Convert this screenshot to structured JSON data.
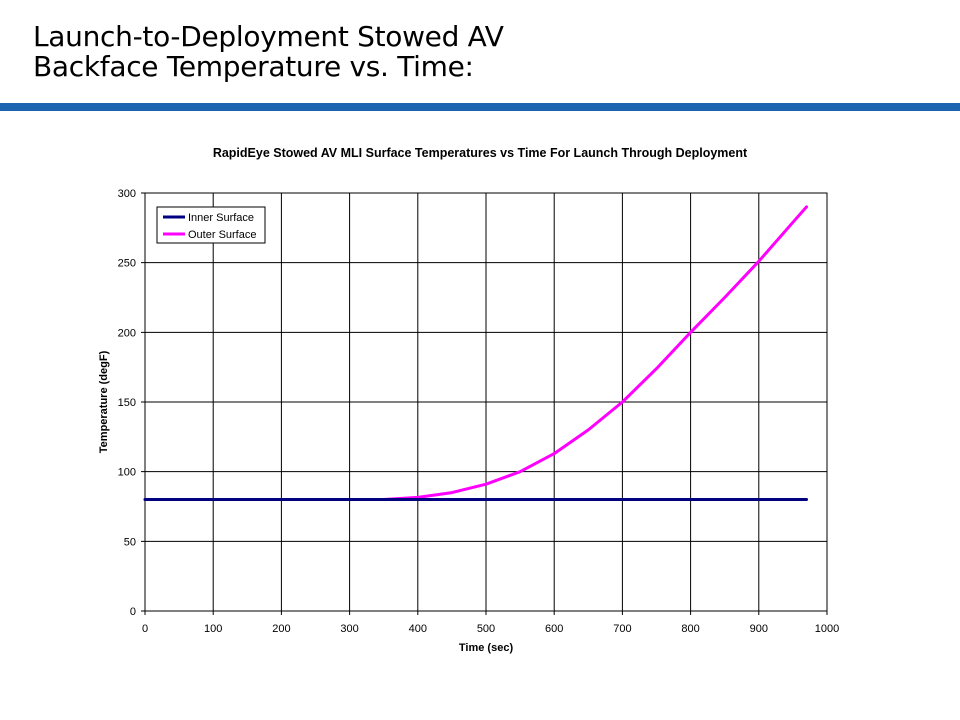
{
  "slide": {
    "title_line1": "Launch-to-Deployment Stowed AV",
    "title_line2": "Backface Temperature vs. Time:",
    "bar_color": "#1a64b0"
  },
  "chart_data": {
    "type": "line",
    "title": "RapidEye Stowed AV MLI Surface Temperatures vs Time For Launch Through Deployment",
    "xlabel": "Time (sec)",
    "ylabel": "Temperature (degF)",
    "xlim": [
      0,
      1000
    ],
    "ylim": [
      0,
      300
    ],
    "xticks": [
      0,
      100,
      200,
      300,
      400,
      500,
      600,
      700,
      800,
      900,
      1000
    ],
    "yticks": [
      0,
      50,
      100,
      150,
      200,
      250,
      300
    ],
    "grid": true,
    "legend_position": "top-left",
    "series": [
      {
        "name": "Inner Surface",
        "color": "#000080",
        "x": [
          0,
          100,
          200,
          300,
          400,
          500,
          600,
          700,
          800,
          900,
          970
        ],
        "y": [
          80,
          80,
          80,
          80,
          80,
          80,
          80,
          80,
          80,
          80,
          80
        ]
      },
      {
        "name": "Outer Surface",
        "color": "#ff00ff",
        "x": [
          0,
          100,
          200,
          300,
          350,
          400,
          450,
          500,
          550,
          600,
          650,
          700,
          750,
          800,
          850,
          900,
          950,
          970
        ],
        "y": [
          80,
          80,
          80,
          80,
          80,
          81.5,
          85,
          91,
          100,
          113,
          130,
          150,
          174,
          200,
          225,
          251,
          279,
          290
        ]
      }
    ]
  }
}
